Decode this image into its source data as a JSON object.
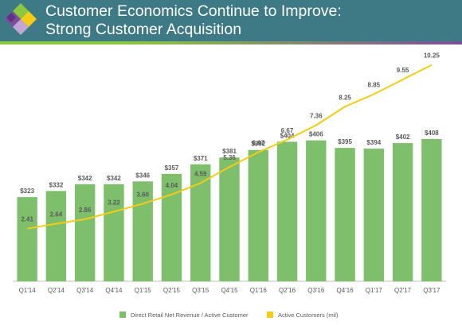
{
  "header": {
    "title_line1": "Customer Economics Continue to Improve:",
    "title_line2": "Strong Customer Acquisition",
    "logo": "wayfair-diamond-logo",
    "background_color": "#3d7a85"
  },
  "colors": {
    "bar": "#7dbf6b",
    "line": "#f5cc16",
    "label": "#595959",
    "axis": "#bfbfbf"
  },
  "chart_data": {
    "type": "bar",
    "categories": [
      "Q1'14",
      "Q2'14",
      "Q3'14",
      "Q4'14",
      "Q1'15",
      "Q2'15",
      "Q3'15",
      "Q4'15",
      "Q1'16",
      "Q2'16",
      "Q3'16",
      "Q4'16",
      "Q1'17",
      "Q2'17",
      "Q3'17"
    ],
    "series": [
      {
        "name": "Direct Retail Net Revenue / Active Customer",
        "type": "bar",
        "values": [
          323,
          332,
          342,
          342,
          346,
          357,
          371,
          381,
          392,
          404,
          406,
          395,
          394,
          402,
          408
        ],
        "labels": [
          "$323",
          "$332",
          "$342",
          "$342",
          "$346",
          "$357",
          "$371",
          "$381",
          "$392",
          "$404",
          "$406",
          "$395",
          "$394",
          "$402",
          "$408"
        ],
        "color": "#7dbf6b",
        "range": [
          200,
          430
        ]
      },
      {
        "name": "Active Customers (mil)",
        "type": "line",
        "values": [
          2.41,
          2.64,
          2.86,
          3.22,
          3.6,
          4.04,
          4.59,
          5.36,
          6.07,
          6.67,
          7.36,
          8.25,
          8.85,
          9.55,
          10.25
        ],
        "labels": [
          "2.41",
          "2.64",
          "2.86",
          "3.22",
          "3.60",
          "4.04",
          "4.59",
          "5.36",
          "6.07",
          "6.67",
          "7.36",
          "8.25",
          "8.85",
          "9.55",
          "10.25"
        ],
        "color": "#f5cc16",
        "range": [
          0,
          11
        ]
      }
    ],
    "grid": false,
    "legend_position": "bottom"
  },
  "legend": [
    {
      "label": "Direct Retail Net Revenue / Active Customer",
      "color": "#7dbf6b"
    },
    {
      "label": "Active Customers (mil)",
      "color": "#f5cc16"
    }
  ]
}
